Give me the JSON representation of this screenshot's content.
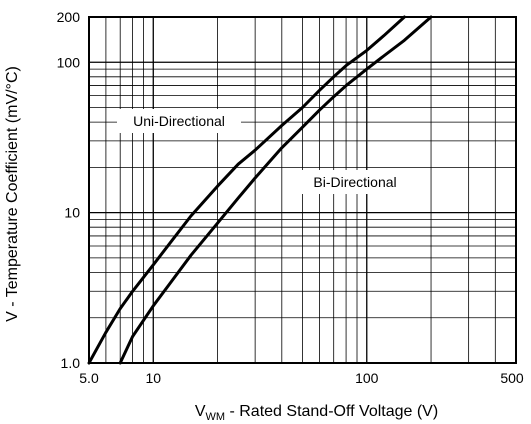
{
  "chart_data": {
    "type": "line",
    "xlabel_main": "V",
    "xlabel_sub": "WM",
    "xlabel_rest": " - Rated Stand-Off Voltage (V)",
    "ylabel": "V - Temperature Coefficient (mV/°C)",
    "x_scale": "log",
    "y_scale": "log",
    "xlim": [
      5,
      500
    ],
    "ylim": [
      1,
      200
    ],
    "x_ticks": [
      5,
      10,
      100,
      500
    ],
    "x_tick_labels": [
      "5.0",
      "10",
      "100",
      "500"
    ],
    "y_ticks": [
      1,
      10,
      100,
      200
    ],
    "y_tick_labels": [
      "1.0",
      "10",
      "100",
      "200"
    ],
    "grid": true,
    "series": [
      {
        "name": "Uni-Directional",
        "x": [
          5.0,
          6.0,
          7.0,
          8.0,
          10.0,
          12.0,
          15.0,
          20.0,
          25.0,
          30.0,
          40.0,
          50.0,
          60.0,
          70.0,
          80.0,
          100.0,
          120.0,
          150.0
        ],
        "y": [
          1.0,
          1.6,
          2.3,
          3.0,
          4.5,
          6.3,
          9.5,
          15,
          21,
          26,
          38,
          50,
          65,
          80,
          95,
          120,
          150,
          200
        ]
      },
      {
        "name": "Bi-Directional",
        "x": [
          7.0,
          8.0,
          10.0,
          12.0,
          15.0,
          20.0,
          25.0,
          30.0,
          40.0,
          50.0,
          60.0,
          70.0,
          80.0,
          100.0,
          120.0,
          150.0,
          200.0
        ],
        "y": [
          1.0,
          1.5,
          2.4,
          3.4,
          5.2,
          8.5,
          12.5,
          17,
          27,
          37,
          48,
          59,
          70,
          90,
          110,
          140,
          200
        ]
      }
    ]
  }
}
